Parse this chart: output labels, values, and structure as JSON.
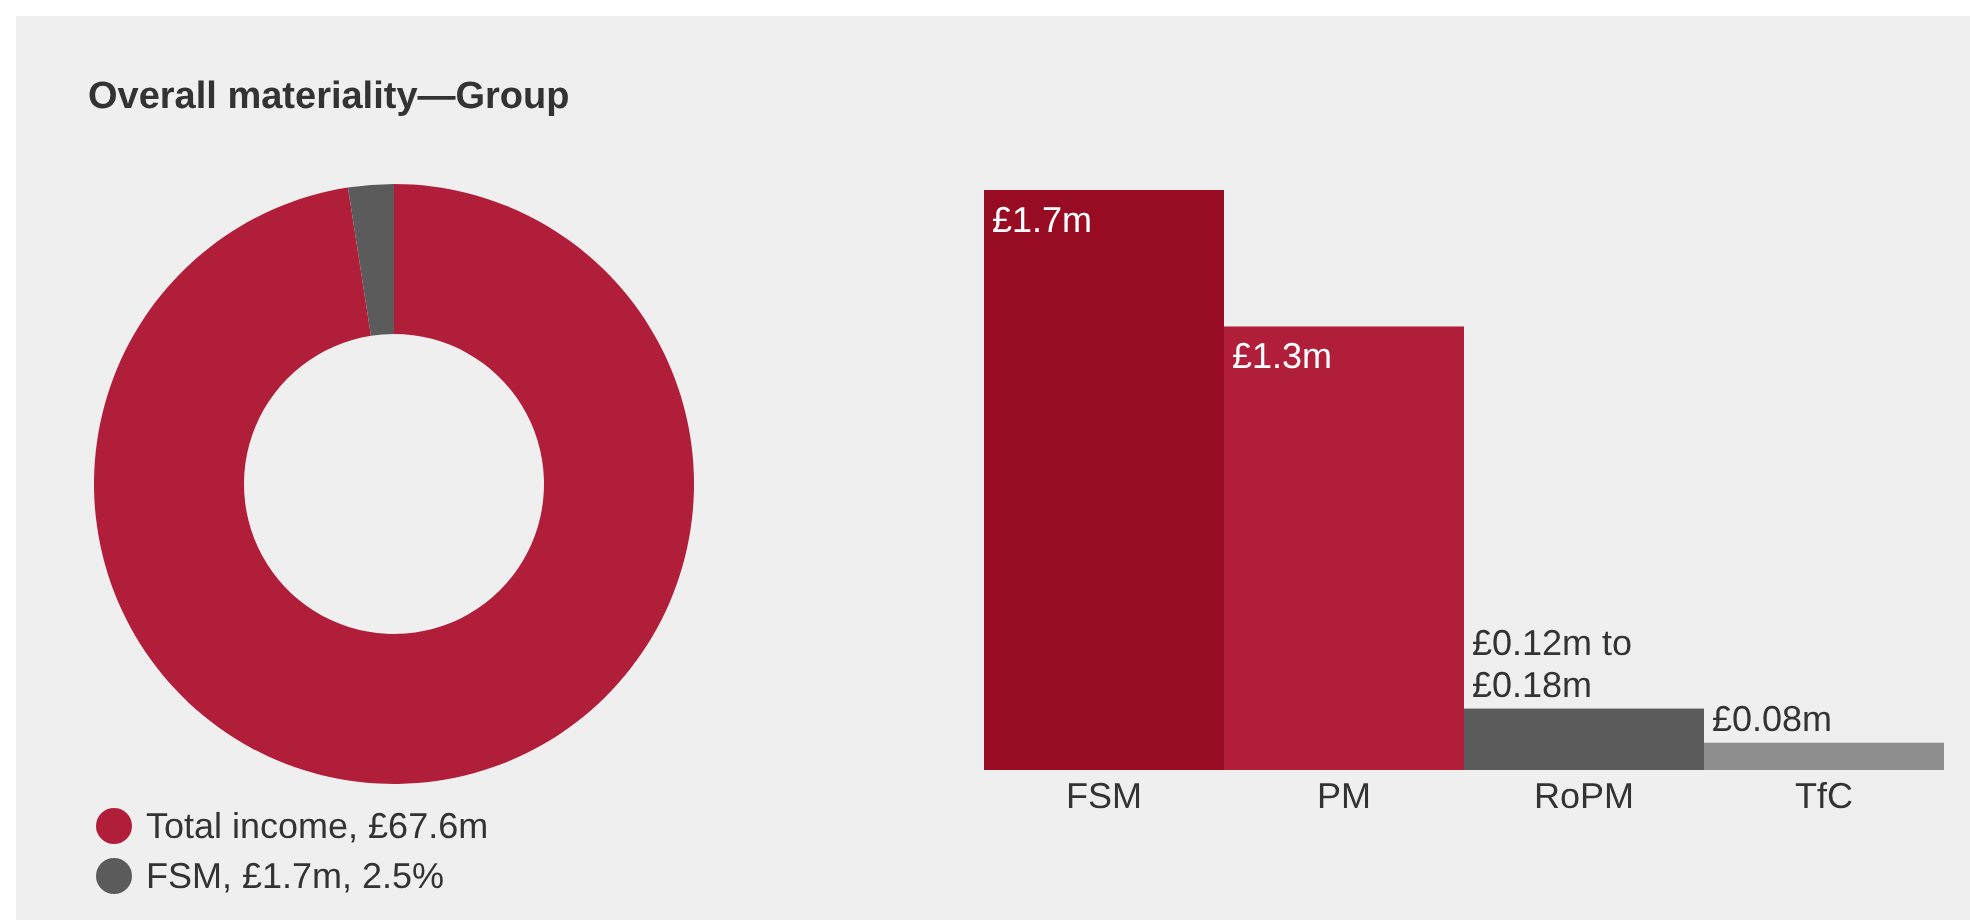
{
  "chart_data": [
    {
      "type": "donut",
      "title": "Overall materiality—Group",
      "categories": [
        "Total income, £67.6m",
        "FSM, £1.7m, 2.5%"
      ],
      "values": [
        67.6,
        1.7
      ],
      "colors": [
        "#b01e3a",
        "#5b5b5c"
      ],
      "legend": "bottom left"
    },
    {
      "type": "bar",
      "categories": [
        "FSM",
        "PM",
        "RoPM",
        "TfC"
      ],
      "values": [
        1.7,
        1.3,
        0.18,
        0.08
      ],
      "colors": [
        "#970c22",
        "#b01e3a",
        "#5b5b5c",
        "#8e8e8e"
      ],
      "value_labels": [
        "£1.7m",
        "£1.3m",
        null,
        "£0.08m"
      ],
      "annotations": [
        {
          "text": "£0.12m to\n£0.18m",
          "x": "RoPM",
          "y": 0.18
        }
      ]
    }
  ]
}
